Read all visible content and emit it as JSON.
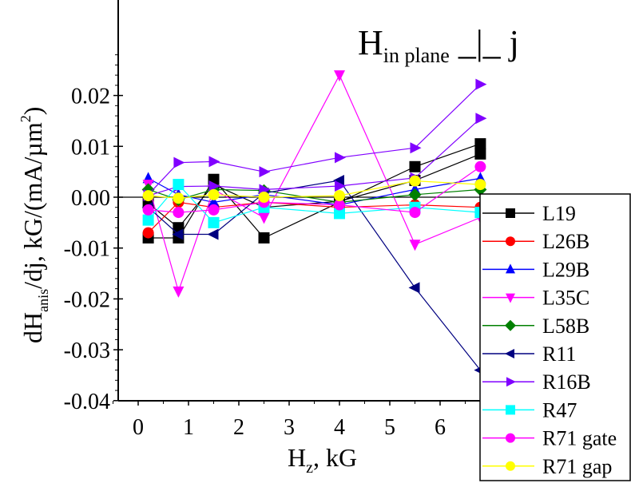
{
  "chart_data": {
    "type": "line",
    "title": {
      "main": "H",
      "sub": "in plane",
      "suffix": " _|_ j"
    },
    "xlabel": {
      "main": "H",
      "sub": "z",
      "suffix": ", kG"
    },
    "ylabel": {
      "prefix": "dH",
      "sub": "anis",
      "mid": "/dj, kG/(mA/µm",
      "sup": "2",
      "suffix": ")"
    },
    "xlim": [
      -0.2,
      7.0
    ],
    "ylim": [
      -0.04,
      0.03
    ],
    "xticks": [
      0,
      1,
      2,
      3,
      4,
      5,
      6
    ],
    "xtick_labels": [
      "0",
      "1",
      "2",
      "3",
      "4",
      "5",
      "6"
    ],
    "yticks": [
      0.02,
      0.01,
      0.0,
      -0.01,
      -0.02,
      -0.03,
      -0.04
    ],
    "ytick_labels": [
      "0.02",
      "0.01",
      "0.00",
      "-0.01",
      "-0.02",
      "-0.03",
      "-0.04"
    ],
    "zero_line": true,
    "grid": false,
    "legend_position": "bottom-right",
    "x": [
      0.2,
      0.8,
      1.5,
      2.5,
      4.0,
      5.5,
      6.8
    ],
    "series": [
      {
        "name": "L19",
        "color": "#000000",
        "marker": "square",
        "values": [
          -0.008,
          -0.008,
          0.0035,
          -0.008,
          -0.001,
          0.006,
          0.0105
        ]
      },
      {
        "name": "L26B",
        "color": "#ff0000",
        "marker": "circle",
        "values": [
          -0.007,
          -0.001,
          -0.002,
          -0.001,
          -0.002,
          -0.0015,
          -0.002
        ]
      },
      {
        "name": "L29B",
        "color": "#0000ff",
        "marker": "triangle-up",
        "values": [
          0.0037,
          0.0005,
          -0.001,
          0.0005,
          -0.0015,
          0.0015,
          0.0037
        ]
      },
      {
        "name": "L35C",
        "color": "#ff00ff",
        "marker": "triangle-down",
        "values": [
          0.0025,
          -0.0185,
          0.0015,
          -0.004,
          0.024,
          -0.0093,
          -0.004
        ]
      },
      {
        "name": "L58B",
        "color": "#008000",
        "marker": "diamond",
        "values": [
          0.0015,
          -0.0005,
          0.0015,
          0.0013,
          -0.001,
          0.0005,
          0.0015
        ]
      },
      {
        "name": "R11",
        "color": "#000080",
        "marker": "triangle-left",
        "values": [
          -0.002,
          -0.0073,
          -0.0073,
          0.0008,
          0.0033,
          -0.0178,
          -0.034
        ]
      },
      {
        "name": "R16B",
        "color": "#8000ff",
        "marker": "triangle-right",
        "values": [
          0.0005,
          0.0068,
          0.007,
          0.005,
          0.0078,
          0.0097,
          0.0222
        ]
      },
      {
        "name": "R47",
        "color": "#00ffff",
        "marker": "square",
        "values": [
          -0.0045,
          0.0025,
          -0.005,
          -0.002,
          -0.0032,
          -0.002,
          -0.003
        ]
      },
      {
        "name": "R71 gate",
        "color": "#ff00ff",
        "marker": "circle",
        "values": [
          -0.0025,
          -0.003,
          -0.0025,
          -0.001,
          -0.0015,
          -0.003,
          0.006
        ]
      },
      {
        "name": "R71 gap",
        "color": "#ffff00",
        "marker": "circle",
        "values": [
          0.0003,
          -0.0002,
          0.0005,
          0.0,
          0.0003,
          0.0032,
          0.0025
        ]
      }
    ],
    "extra_series_values": {
      "R16B_second_branch": [
        0.0003,
        0.0021,
        0.0022,
        0.0015,
        0.0022,
        0.0038,
        0.0155
      ],
      "L19_second_branch": [
        -0.0012,
        -0.006,
        0.0025,
        -0.002,
        -0.0008,
        0.0033,
        0.0085
      ]
    }
  }
}
